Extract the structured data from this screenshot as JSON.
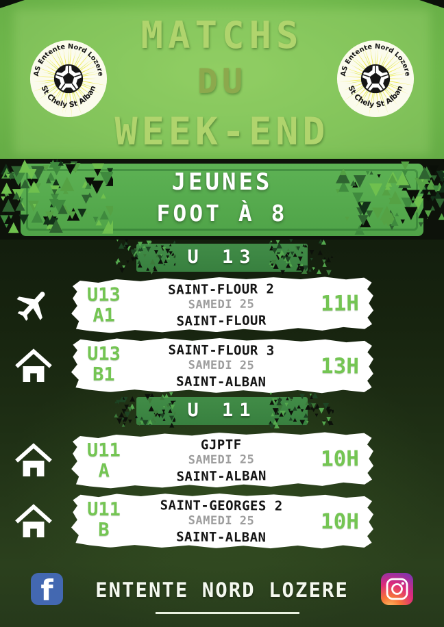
{
  "header": {
    "title_line1": "MATCHS",
    "title_line2": "DU",
    "title_line3": "WEEK-END",
    "logo": {
      "text_top": "AS Entente Nord Lozere",
      "text_bottom": "St Chely St Alban"
    }
  },
  "category_banner": {
    "line1": "JEUNES",
    "line2": "FOOT À 8"
  },
  "sections": [
    {
      "title": "U 13",
      "matches": [
        {
          "location_type": "away",
          "icon": "airplane-icon",
          "team_line1": "U13",
          "team_line2": "A1",
          "opponent": "SAINT-FLOUR 2",
          "date": "SAMEDI 25",
          "venue": "SAINT-FLOUR",
          "time": "11H"
        },
        {
          "location_type": "home",
          "icon": "home-icon",
          "team_line1": "U13",
          "team_line2": "B1",
          "opponent": "SAINT-FLOUR 3",
          "date": "SAMEDI 25",
          "venue": "SAINT-ALBAN",
          "time": "13H"
        }
      ]
    },
    {
      "title": "U 11",
      "matches": [
        {
          "location_type": "home",
          "icon": "home-icon",
          "team_line1": "U11",
          "team_line2": "A",
          "opponent": "GJPTF",
          "date": "SAMEDI 25",
          "venue": "SAINT-ALBAN",
          "time": "10H"
        },
        {
          "location_type": "home",
          "icon": "home-icon",
          "team_line1": "U11",
          "team_line2": "B",
          "opponent": "SAINT-GEORGES 2",
          "date": "SAMEDI 25",
          "venue": "SAINT-ALBAN",
          "time": "10H"
        }
      ]
    }
  ],
  "footer": {
    "club_name": "ENTENTE NORD LOZERE",
    "facebook_glyph": "f"
  },
  "colors": {
    "header_green": "#72ba4d",
    "title_light_green": "#b0d46d",
    "title_olive_green": "#8ca94d",
    "band_green": "#55a94e",
    "banner_green": "#3d8743",
    "accent_green": "#74c553",
    "date_gray": "#9d9d9d",
    "card_white": "#ffffff",
    "dark_background": "#17240f",
    "facebook_blue": "#4368b1",
    "instagram_gradient": [
      "#fdc468",
      "#f77737",
      "#dd2a7b",
      "#8134af"
    ]
  }
}
